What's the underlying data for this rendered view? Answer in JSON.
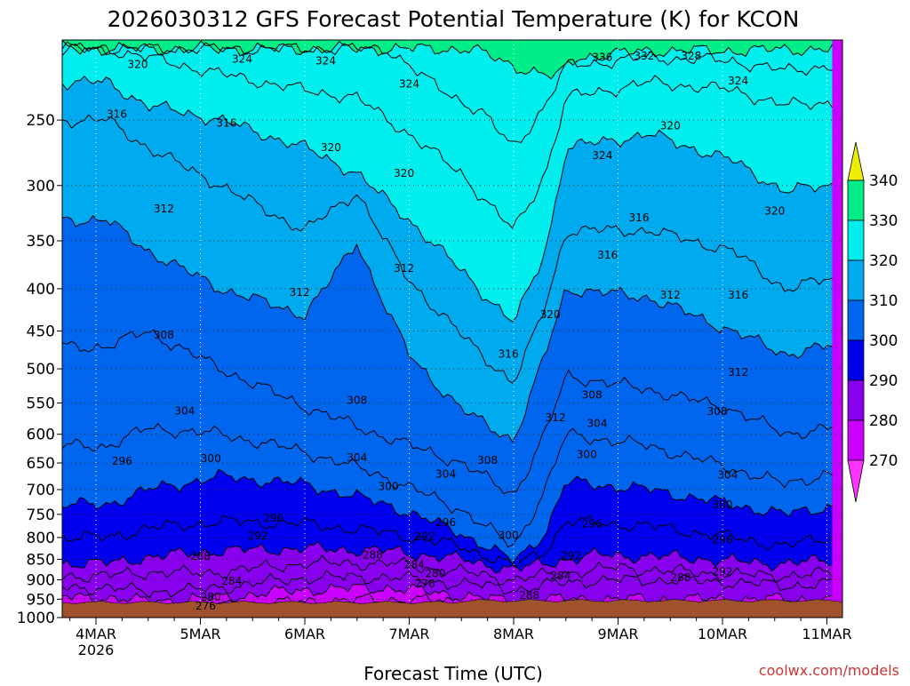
{
  "chart_data": {
    "type": "contour",
    "title": "2026030312 GFS Forecast Potential Temperature (K) for KCON",
    "xlabel": "Forecast Time (UTC)",
    "credit": "coolwx.com/models",
    "x_ticks": [
      {
        "label": "4MAR",
        "sub": "2026"
      },
      {
        "label": "5MAR",
        "sub": ""
      },
      {
        "label": "6MAR",
        "sub": ""
      },
      {
        "label": "7MAR",
        "sub": ""
      },
      {
        "label": "8MAR",
        "sub": ""
      },
      {
        "label": "9MAR",
        "sub": ""
      },
      {
        "label": "10MAR",
        "sub": ""
      },
      {
        "label": "11MAR",
        "sub": ""
      }
    ],
    "y_ticks": [
      250,
      300,
      350,
      400,
      450,
      500,
      550,
      600,
      650,
      700,
      750,
      800,
      850,
      900,
      950,
      1000
    ],
    "ylim": [
      200,
      1000
    ],
    "y_scale": "log",
    "y_inverted": true,
    "contour_interval": 4,
    "colorbar": {
      "levels": [
        270,
        280,
        290,
        300,
        310,
        320,
        330,
        340
      ],
      "colors": [
        "#ff33ff",
        "#cc00ff",
        "#8800ee",
        "#0000ee",
        "#0066ee",
        "#00aaee",
        "#00eeee",
        "#00ee88",
        "#66ee00",
        "#eeee00"
      ]
    },
    "terrain_color": "#a0522d",
    "series": [
      {
        "value": 276,
        "points": [
          [
            0.1,
            970
          ],
          [
            0.4,
            975
          ],
          [
            1.2,
            968
          ],
          [
            2.1,
            955
          ],
          [
            3.0,
            950
          ],
          [
            3.7,
            965
          ],
          [
            4.1,
            985
          ]
        ]
      },
      {
        "value": 280,
        "points": [
          [
            0.1,
            945
          ],
          [
            0.4,
            955
          ],
          [
            1.0,
            950
          ],
          [
            2.0,
            925
          ],
          [
            2.8,
            920
          ],
          [
            3.5,
            940
          ],
          [
            4.1,
            960
          ],
          [
            4.4,
            950
          ]
        ]
      },
      {
        "value": 284,
        "points": [
          [
            0.1,
            920
          ],
          [
            0.5,
            930
          ],
          [
            1.0,
            925
          ],
          [
            2.0,
            895
          ],
          [
            2.8,
            893
          ],
          [
            3.5,
            910
          ],
          [
            4.1,
            925
          ],
          [
            4.5,
            905
          ],
          [
            5.2,
            900
          ],
          [
            6.0,
            905
          ],
          [
            6.6,
            915
          ],
          [
            7.0,
            910
          ]
        ]
      },
      {
        "value": 288,
        "points": [
          [
            0.1,
            890
          ],
          [
            0.6,
            880
          ],
          [
            1.0,
            885
          ],
          [
            2.0,
            860
          ],
          [
            2.8,
            860
          ],
          [
            3.5,
            880
          ],
          [
            4.0,
            900
          ],
          [
            4.4,
            885
          ],
          [
            5.0,
            870
          ],
          [
            5.6,
            880
          ],
          [
            6.4,
            890
          ],
          [
            7.0,
            885
          ]
        ]
      },
      {
        "value": 292,
        "points": [
          [
            0.1,
            860
          ],
          [
            0.5,
            845
          ],
          [
            1.2,
            830
          ],
          [
            2.0,
            825
          ],
          [
            2.8,
            830
          ],
          [
            3.5,
            850
          ],
          [
            4.0,
            875
          ],
          [
            4.4,
            855
          ],
          [
            4.8,
            840
          ],
          [
            5.6,
            845
          ],
          [
            6.4,
            860
          ],
          [
            7.0,
            855
          ]
        ]
      },
      {
        "value": 296,
        "points": [
          [
            0.1,
            800
          ],
          [
            0.5,
            780
          ],
          [
            1.2,
            765
          ],
          [
            2.0,
            770
          ],
          [
            2.8,
            790
          ],
          [
            3.5,
            820
          ],
          [
            4.0,
            865
          ],
          [
            4.3,
            830
          ],
          [
            4.5,
            765
          ],
          [
            5.3,
            775
          ],
          [
            6.1,
            800
          ],
          [
            6.6,
            820
          ],
          [
            7.0,
            800
          ]
        ]
      },
      {
        "value": 300,
        "points": [
          [
            0.1,
            730
          ],
          [
            0.5,
            700
          ],
          [
            1.2,
            675
          ],
          [
            2.0,
            690
          ],
          [
            2.8,
            730
          ],
          [
            3.5,
            790
          ],
          [
            4.0,
            855
          ],
          [
            4.3,
            790
          ],
          [
            4.5,
            685
          ],
          [
            5.3,
            700
          ],
          [
            6.1,
            730
          ],
          [
            6.6,
            750
          ],
          [
            7.0,
            735
          ]
        ]
      },
      {
        "value": 304,
        "points": [
          [
            0.1,
            620
          ],
          [
            0.5,
            590
          ],
          [
            1.2,
            600
          ],
          [
            2.0,
            630
          ],
          [
            2.7,
            670
          ],
          [
            3.5,
            740
          ],
          [
            4.0,
            820
          ],
          [
            4.3,
            700
          ],
          [
            4.5,
            600
          ],
          [
            5.3,
            620
          ],
          [
            6.1,
            660
          ],
          [
            6.6,
            690
          ],
          [
            7.0,
            670
          ]
        ]
      },
      {
        "value": 308,
        "points": [
          [
            0.1,
            470
          ],
          [
            0.5,
            450
          ],
          [
            1.2,
            500
          ],
          [
            2.0,
            555
          ],
          [
            2.7,
            600
          ],
          [
            3.5,
            650
          ],
          [
            4.0,
            710
          ],
          [
            4.3,
            600
          ],
          [
            4.5,
            510
          ],
          [
            5.3,
            530
          ],
          [
            6.1,
            560
          ],
          [
            6.6,
            600
          ],
          [
            7.0,
            590
          ]
        ]
      },
      {
        "value": 312,
        "points": [
          [
            0.1,
            330
          ],
          [
            0.5,
            360
          ],
          [
            1.2,
            400
          ],
          [
            2.0,
            430
          ],
          [
            2.5,
            350
          ],
          [
            3.0,
            480
          ],
          [
            3.5,
            560
          ],
          [
            4.0,
            610
          ],
          [
            4.3,
            480
          ],
          [
            4.5,
            400
          ],
          [
            5.3,
            410
          ],
          [
            6.1,
            450
          ],
          [
            6.6,
            480
          ],
          [
            7.0,
            470
          ]
        ]
      },
      {
        "value": 316,
        "points": [
          [
            0.1,
            250
          ],
          [
            0.5,
            270
          ],
          [
            1.2,
            300
          ],
          [
            2.0,
            340
          ],
          [
            2.5,
            305
          ],
          [
            3.0,
            390
          ],
          [
            3.5,
            455
          ],
          [
            4.0,
            520
          ],
          [
            4.3,
            420
          ],
          [
            4.5,
            340
          ],
          [
            5.3,
            340
          ],
          [
            6.1,
            360
          ],
          [
            6.6,
            400
          ],
          [
            7.0,
            390
          ]
        ]
      },
      {
        "value": 320,
        "points": [
          [
            0.1,
            225
          ],
          [
            0.5,
            240
          ],
          [
            1.2,
            250
          ],
          [
            2.0,
            270
          ],
          [
            2.5,
            290
          ],
          [
            3.0,
            330
          ],
          [
            3.5,
            380
          ],
          [
            4.0,
            440
          ],
          [
            4.3,
            360
          ],
          [
            4.5,
            270
          ],
          [
            5.3,
            260
          ],
          [
            6.1,
            280
          ],
          [
            6.6,
            305
          ],
          [
            7.0,
            300
          ]
        ]
      },
      {
        "value": 324,
        "points": [
          [
            0.1,
            205
          ],
          [
            0.5,
            210
          ],
          [
            1.2,
            220
          ],
          [
            2.0,
            230
          ],
          [
            2.5,
            235
          ],
          [
            3.0,
            260
          ],
          [
            3.5,
            290
          ],
          [
            4.0,
            340
          ],
          [
            4.3,
            290
          ],
          [
            4.5,
            235
          ],
          [
            5.3,
            225
          ],
          [
            6.1,
            230
          ],
          [
            6.6,
            240
          ],
          [
            7.0,
            238
          ]
        ]
      },
      {
        "value": 328,
        "points": [
          [
            2.8,
            205
          ],
          [
            3.2,
            225
          ],
          [
            3.7,
            245
          ],
          [
            4.0,
            270
          ],
          [
            4.3,
            240
          ],
          [
            4.5,
            215
          ],
          [
            5.3,
            210
          ],
          [
            6.1,
            212
          ],
          [
            6.6,
            218
          ],
          [
            7.0,
            215
          ]
        ]
      },
      {
        "value": 332,
        "points": [
          [
            3.6,
            205
          ],
          [
            4.0,
            215
          ],
          [
            4.4,
            222
          ],
          [
            4.6,
            210
          ],
          [
            5.3,
            206
          ],
          [
            6.1,
            206
          ],
          [
            7.0,
            205
          ]
        ]
      }
    ],
    "labels": [
      {
        "text": "320",
        "x": 0.4,
        "y": 214
      },
      {
        "text": "324",
        "x": 2.2,
        "y": 212
      },
      {
        "text": "324",
        "x": 1.4,
        "y": 211
      },
      {
        "text": "324",
        "x": 3.0,
        "y": 226
      },
      {
        "text": "336",
        "x": 4.85,
        "y": 210
      },
      {
        "text": "332",
        "x": 5.25,
        "y": 209
      },
      {
        "text": "328",
        "x": 5.7,
        "y": 209
      },
      {
        "text": "324",
        "x": 6.15,
        "y": 224
      },
      {
        "text": "316",
        "x": 0.2,
        "y": 246
      },
      {
        "text": "316",
        "x": 1.25,
        "y": 252
      },
      {
        "text": "320",
        "x": 2.25,
        "y": 270
      },
      {
        "text": "320",
        "x": 5.5,
        "y": 254
      },
      {
        "text": "324",
        "x": 4.85,
        "y": 276
      },
      {
        "text": "320",
        "x": 2.95,
        "y": 290
      },
      {
        "text": "312",
        "x": 0.65,
        "y": 320
      },
      {
        "text": "316",
        "x": 5.2,
        "y": 328
      },
      {
        "text": "320",
        "x": 6.5,
        "y": 322
      },
      {
        "text": "316",
        "x": 4.9,
        "y": 364
      },
      {
        "text": "312",
        "x": 2.95,
        "y": 378
      },
      {
        "text": "312",
        "x": 1.95,
        "y": 404
      },
      {
        "text": "312",
        "x": 5.5,
        "y": 407
      },
      {
        "text": "316",
        "x": 6.15,
        "y": 407
      },
      {
        "text": "320",
        "x": 4.35,
        "y": 430
      },
      {
        "text": "308",
        "x": 0.65,
        "y": 455
      },
      {
        "text": "316",
        "x": 3.95,
        "y": 480
      },
      {
        "text": "312",
        "x": 6.15,
        "y": 505
      },
      {
        "text": "308",
        "x": 2.5,
        "y": 546
      },
      {
        "text": "304",
        "x": 0.85,
        "y": 562
      },
      {
        "text": "308",
        "x": 4.75,
        "y": 538
      },
      {
        "text": "312",
        "x": 4.4,
        "y": 573
      },
      {
        "text": "304",
        "x": 4.8,
        "y": 582
      },
      {
        "text": "308",
        "x": 5.95,
        "y": 563
      },
      {
        "text": "296",
        "x": 0.25,
        "y": 647
      },
      {
        "text": "300",
        "x": 1.1,
        "y": 642
      },
      {
        "text": "304",
        "x": 2.5,
        "y": 640
      },
      {
        "text": "308",
        "x": 3.75,
        "y": 645
      },
      {
        "text": "300",
        "x": 4.7,
        "y": 635
      },
      {
        "text": "304",
        "x": 3.35,
        "y": 670
      },
      {
        "text": "304",
        "x": 6.05,
        "y": 672
      },
      {
        "text": "300",
        "x": 2.8,
        "y": 694
      },
      {
        "text": "300",
        "x": 6.0,
        "y": 730
      },
      {
        "text": "296",
        "x": 1.7,
        "y": 758
      },
      {
        "text": "296",
        "x": 3.35,
        "y": 767
      },
      {
        "text": "296",
        "x": 4.75,
        "y": 770
      },
      {
        "text": "292",
        "x": 1.55,
        "y": 796
      },
      {
        "text": "292",
        "x": 3.15,
        "y": 798
      },
      {
        "text": "300",
        "x": 3.95,
        "y": 795
      },
      {
        "text": "296",
        "x": 6.0,
        "y": 805
      },
      {
        "text": "288",
        "x": 1.0,
        "y": 843
      },
      {
        "text": "288",
        "x": 2.65,
        "y": 840
      },
      {
        "text": "284",
        "x": 3.05,
        "y": 863
      },
      {
        "text": "292",
        "x": 4.55,
        "y": 842
      },
      {
        "text": "292",
        "x": 6.0,
        "y": 880
      },
      {
        "text": "288",
        "x": 5.6,
        "y": 895
      },
      {
        "text": "280",
        "x": 3.25,
        "y": 885
      },
      {
        "text": "284",
        "x": 1.3,
        "y": 903
      },
      {
        "text": "276",
        "x": 3.15,
        "y": 910
      },
      {
        "text": "284",
        "x": 4.45,
        "y": 890
      },
      {
        "text": "280",
        "x": 1.1,
        "y": 945
      },
      {
        "text": "288",
        "x": 4.15,
        "y": 940
      },
      {
        "text": "276",
        "x": 1.05,
        "y": 968
      }
    ]
  }
}
